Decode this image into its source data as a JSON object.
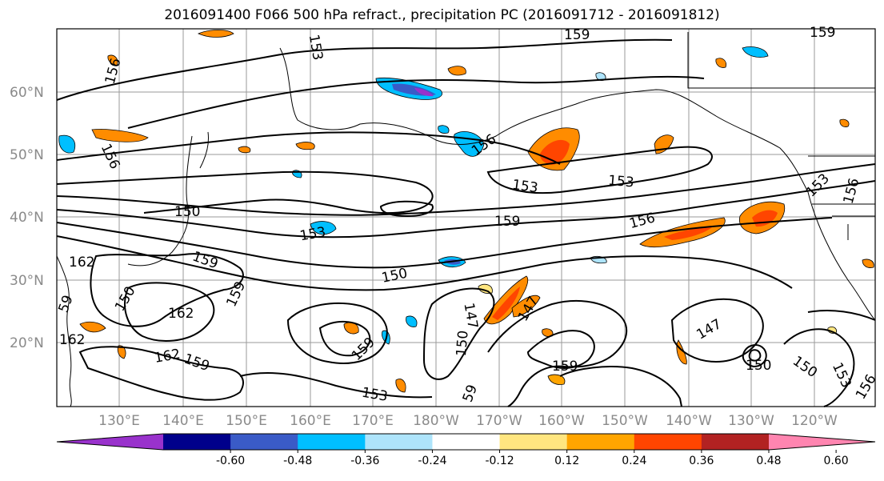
{
  "title": "2016091400 F066 500 hPa refract., precipitation PC (2016091712 - 2016091812)",
  "lat_labels": [
    "60°N",
    "50°N",
    "40°N",
    "30°N",
    "20°N"
  ],
  "lon_labels": [
    "130°E",
    "140°E",
    "150°E",
    "160°E",
    "170°E",
    "180°W",
    "170°W",
    "160°W",
    "150°W",
    "140°W",
    "130°W",
    "120°W"
  ],
  "contour_labels": [
    "159",
    "159",
    "156",
    "156",
    "153",
    "156",
    "153",
    "153",
    "159",
    "156",
    "150",
    "153",
    "159",
    "162",
    "150",
    "159",
    "150",
    "147",
    "147",
    "150",
    "162",
    "162",
    "159",
    "159",
    "159",
    "153",
    "147",
    "150",
    "150",
    "153",
    "156",
    "162",
    "153",
    "156",
    "59",
    "59"
  ],
  "colorbar": {
    "ticks": [
      "-0.60",
      "-0.48",
      "-0.36",
      "-0.24",
      "-0.12",
      "0.12",
      "0.24",
      "0.36",
      "0.48",
      "0.60"
    ],
    "colors": [
      "#9932cc",
      "#00008b",
      "#3a5bc7",
      "#00bfff",
      "#aee4fb",
      "#ffffff",
      "#ffe680",
      "#ffa500",
      "#ff4500",
      "#b22222",
      "#ff85b0"
    ]
  }
}
